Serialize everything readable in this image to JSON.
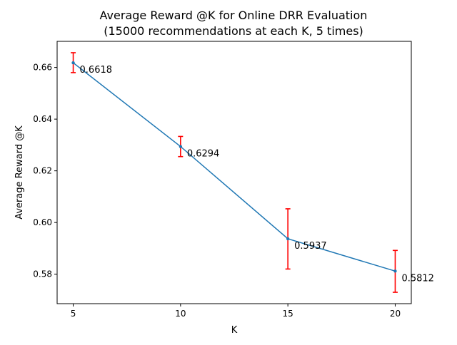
{
  "chart_data": {
    "type": "line",
    "title_line1": "Average Reward @K for Online DRR Evaluation",
    "title_line2": "(15000 recommendations at each K, 5 times)",
    "xlabel": "K",
    "ylabel": "Average Reward @K",
    "x": [
      5,
      10,
      15,
      20
    ],
    "y": [
      0.6618,
      0.6294,
      0.5937,
      0.5812
    ],
    "error_low": [
      0.658,
      0.6255,
      0.582,
      0.573
    ],
    "error_high": [
      0.6657,
      0.6333,
      0.6053,
      0.5892
    ],
    "data_labels": [
      "0.6618",
      "0.6294",
      "0.5937",
      "0.5812"
    ],
    "xticks": [
      "5",
      "10",
      "15",
      "20"
    ],
    "yticks": [
      "0.58",
      "0.60",
      "0.62",
      "0.64",
      "0.66"
    ],
    "xlim": [
      4.25,
      20.75
    ],
    "ylim": [
      0.5686,
      0.6701
    ],
    "grid": false,
    "line_color": "#1f77b4",
    "error_color": "#ff0000"
  }
}
